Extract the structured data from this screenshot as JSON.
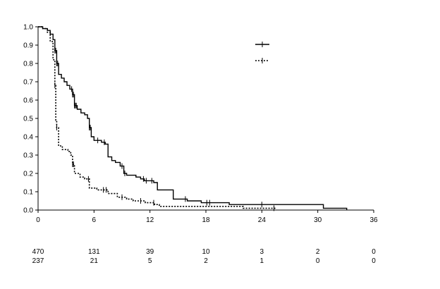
{
  "chart_data": {
    "type": "line",
    "title": "",
    "xlabel": "",
    "ylabel": "",
    "xlim": [
      0,
      36
    ],
    "ylim": [
      0,
      1.0
    ],
    "x_ticks": [
      "0",
      "6",
      "12",
      "18",
      "24",
      "30",
      "36"
    ],
    "y_ticks": [
      "0.0",
      "0.1",
      "0.2",
      "0.3",
      "0.4",
      "0.5",
      "0.6",
      "0.7",
      "0.8",
      "0.9",
      "1.0"
    ],
    "grid": false,
    "legend": {
      "placement": "top-right",
      "entries": [
        "",
        ""
      ]
    },
    "series": [
      {
        "style": "solid",
        "points": [
          [
            0,
            1.0
          ],
          [
            0.5,
            0.99
          ],
          [
            1.0,
            0.98
          ],
          [
            1.3,
            0.96
          ],
          [
            1.6,
            0.93
          ],
          [
            1.8,
            0.87
          ],
          [
            2.0,
            0.8
          ],
          [
            2.2,
            0.74
          ],
          [
            2.5,
            0.72
          ],
          [
            2.8,
            0.7
          ],
          [
            3.1,
            0.68
          ],
          [
            3.4,
            0.66
          ],
          [
            3.7,
            0.63
          ],
          [
            3.9,
            0.57
          ],
          [
            4.2,
            0.55
          ],
          [
            4.6,
            0.53
          ],
          [
            5.0,
            0.52
          ],
          [
            5.3,
            0.5
          ],
          [
            5.5,
            0.45
          ],
          [
            5.7,
            0.4
          ],
          [
            6.0,
            0.38
          ],
          [
            6.8,
            0.37
          ],
          [
            7.2,
            0.36
          ],
          [
            7.5,
            0.29
          ],
          [
            7.9,
            0.27
          ],
          [
            8.3,
            0.26
          ],
          [
            8.8,
            0.24
          ],
          [
            9.2,
            0.2
          ],
          [
            9.5,
            0.19
          ],
          [
            10.5,
            0.18
          ],
          [
            11.0,
            0.17
          ],
          [
            11.4,
            0.16
          ],
          [
            12.4,
            0.15
          ],
          [
            12.8,
            0.11
          ],
          [
            14.2,
            0.11
          ],
          [
            14.5,
            0.06
          ],
          [
            16.0,
            0.05
          ],
          [
            17.5,
            0.04
          ],
          [
            18.5,
            0.04
          ],
          [
            20.5,
            0.03
          ],
          [
            30.5,
            0.03
          ],
          [
            30.6,
            0.01
          ],
          [
            33.0,
            0.01
          ],
          [
            33.1,
            0.0
          ]
        ],
        "censor_x": [
          1.8,
          1.9,
          2.0,
          2.1,
          3.6,
          3.7,
          3.8,
          3.9,
          4.0,
          4.1,
          5.5,
          5.6,
          6.4,
          7.1,
          9.0,
          9.3,
          11.3,
          11.6,
          12.2,
          15.8,
          18.1,
          18.4,
          24.0
        ]
      },
      {
        "style": "dotted",
        "points": [
          [
            0,
            1.0
          ],
          [
            0.5,
            0.99
          ],
          [
            1.0,
            0.97
          ],
          [
            1.3,
            0.92
          ],
          [
            1.6,
            0.82
          ],
          [
            1.8,
            0.68
          ],
          [
            1.9,
            0.49
          ],
          [
            2.0,
            0.45
          ],
          [
            2.2,
            0.35
          ],
          [
            2.6,
            0.33
          ],
          [
            3.2,
            0.32
          ],
          [
            3.5,
            0.3
          ],
          [
            3.7,
            0.25
          ],
          [
            3.9,
            0.2
          ],
          [
            4.5,
            0.18
          ],
          [
            5.0,
            0.17
          ],
          [
            5.5,
            0.12
          ],
          [
            6.3,
            0.11
          ],
          [
            7.5,
            0.09
          ],
          [
            8.5,
            0.07
          ],
          [
            9.5,
            0.06
          ],
          [
            10.2,
            0.05
          ],
          [
            11.5,
            0.04
          ],
          [
            12.5,
            0.03
          ],
          [
            13.0,
            0.02
          ],
          [
            21.5,
            0.02
          ],
          [
            22.0,
            0.01
          ],
          [
            25.5,
            0.01
          ]
        ],
        "censor_x": [
          1.8,
          2.0,
          3.7,
          3.8,
          5.4,
          7.0,
          7.3,
          9.0,
          11.0,
          12.4,
          25.3
        ]
      }
    ],
    "risk_table": [
      {
        "values": [
          "470",
          "131",
          "39",
          "10",
          "3",
          "2",
          "0"
        ]
      },
      {
        "values": [
          "237",
          "21",
          "5",
          "2",
          "1",
          "0",
          "0"
        ]
      }
    ]
  }
}
